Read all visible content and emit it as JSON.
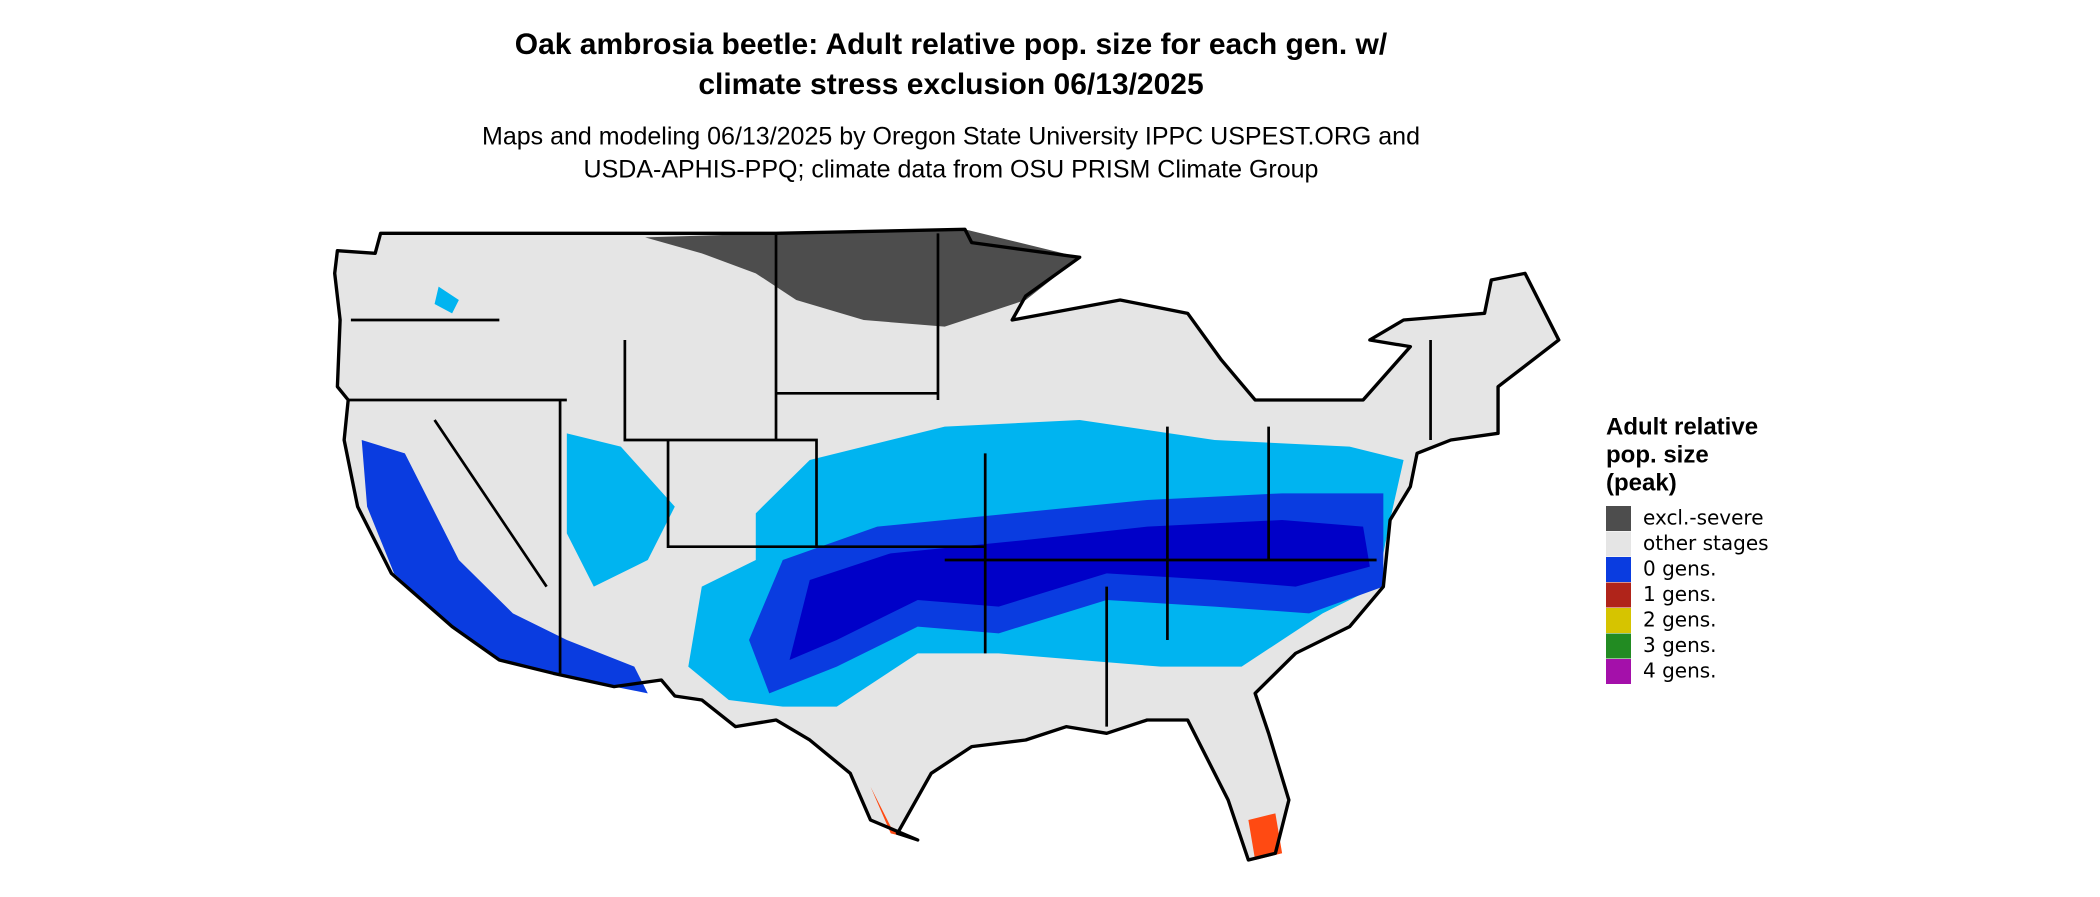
{
  "header": {
    "title": [
      "Oak ambrosia beetle: Adult relative pop. size for each gen. w/",
      "climate stress exclusion 06/13/2025"
    ],
    "subtitle": [
      "Maps and modeling 06/13/2025 by Oregon State University IPPC USPEST.ORG and",
      "USDA-APHIS-PPQ; climate data from OSU PRISM Climate Group"
    ]
  },
  "legend": {
    "title": [
      "Adult relative",
      "pop. size",
      "(peak)"
    ],
    "items": [
      {
        "label": "excl.-severe",
        "color": "#4d4d4d"
      },
      {
        "label": "other stages",
        "color": "#e5e5e5"
      },
      {
        "label": "0 gens.",
        "color": "#0a3ce0"
      },
      {
        "label": "1 gens.",
        "color": "#b0241a"
      },
      {
        "label": "2 gens.",
        "color": "#d6c400"
      },
      {
        "label": "3 gens.",
        "color": "#228b22"
      },
      {
        "label": "4 gens.",
        "color": "#a410aa"
      }
    ]
  }
}
